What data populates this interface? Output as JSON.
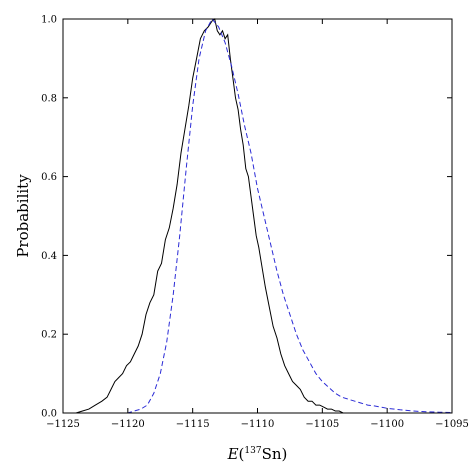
{
  "chart_data": {
    "type": "line",
    "title": "",
    "xlabel": {
      "italic": "E",
      "open": "(",
      "sup": "137",
      "rest": "Sn)"
    },
    "ylabel": "Probability",
    "xlim": [
      -1125,
      -1095
    ],
    "ylim": [
      0.0,
      1.0
    ],
    "x_ticks": [
      -1125,
      -1120,
      -1115,
      -1110,
      -1105,
      -1100,
      -1095
    ],
    "x_tick_labels": [
      "−1125",
      "−1120",
      "−1115",
      "−1110",
      "−1105",
      "−1100",
      "−1095"
    ],
    "y_ticks": [
      0.0,
      0.2,
      0.4,
      0.6,
      0.8,
      1.0
    ],
    "y_tick_labels": [
      "0.0",
      "0.2",
      "0.4",
      "0.6",
      "0.8",
      "1.0"
    ],
    "grid": false,
    "legend": "none",
    "series": [
      {
        "style": "solid",
        "color": "#000000",
        "x": [
          -1125,
          -1124,
          -1123.5,
          -1123,
          -1122.5,
          -1122,
          -1121.6,
          -1121.3,
          -1121,
          -1120.7,
          -1120.4,
          -1120.1,
          -1119.8,
          -1119.5,
          -1119.2,
          -1118.9,
          -1118.6,
          -1118.3,
          -1118.0,
          -1117.7,
          -1117.4,
          -1117.1,
          -1116.8,
          -1116.5,
          -1116.2,
          -1115.9,
          -1115.6,
          -1115.3,
          -1115.0,
          -1114.7,
          -1114.4,
          -1114.1,
          -1113.8,
          -1113.5,
          -1113.3,
          -1113.1,
          -1112.9,
          -1112.7,
          -1112.5,
          -1112.3,
          -1112.1,
          -1111.9,
          -1111.7,
          -1111.5,
          -1111.3,
          -1111.1,
          -1110.9,
          -1110.7,
          -1110.5,
          -1110.3,
          -1110.1,
          -1109.9,
          -1109.7,
          -1109.4,
          -1109.1,
          -1108.8,
          -1108.5,
          -1108.2,
          -1107.9,
          -1107.6,
          -1107.3,
          -1107.0,
          -1106.7,
          -1106.4,
          -1106.1,
          -1105.8,
          -1105.5,
          -1105.2,
          -1104.9,
          -1104.6,
          -1104.3,
          -1104.0,
          -1103.7,
          -1103.4,
          -1103.1,
          -1102.8,
          -1102.5,
          -1102.2,
          -1101.9
        ],
        "y": [
          0.0,
          0.0,
          0.005,
          0.01,
          0.02,
          0.03,
          0.04,
          0.06,
          0.08,
          0.09,
          0.1,
          0.12,
          0.13,
          0.15,
          0.17,
          0.2,
          0.25,
          0.28,
          0.3,
          0.36,
          0.38,
          0.44,
          0.47,
          0.52,
          0.58,
          0.66,
          0.72,
          0.78,
          0.85,
          0.9,
          0.95,
          0.97,
          0.98,
          0.995,
          1.0,
          0.97,
          0.96,
          0.97,
          0.95,
          0.96,
          0.9,
          0.85,
          0.8,
          0.77,
          0.72,
          0.68,
          0.62,
          0.6,
          0.55,
          0.5,
          0.45,
          0.42,
          0.38,
          0.32,
          0.27,
          0.22,
          0.19,
          0.15,
          0.12,
          0.1,
          0.08,
          0.07,
          0.06,
          0.04,
          0.03,
          0.03,
          0.02,
          0.02,
          0.015,
          0.01,
          0.01,
          0.005,
          0.005,
          0.0,
          0.0,
          0.0,
          0.0,
          0.0,
          0.0
        ]
      },
      {
        "style": "dashed",
        "color": "#2b2bd6",
        "x": [
          -1125,
          -1120,
          -1119.5,
          -1119,
          -1118.5,
          -1118,
          -1117.5,
          -1117,
          -1116.5,
          -1116,
          -1115.5,
          -1115,
          -1114.5,
          -1114,
          -1113.5,
          -1113,
          -1112.5,
          -1112,
          -1111.5,
          -1111,
          -1110.5,
          -1110,
          -1109.5,
          -1109,
          -1108.5,
          -1108,
          -1107.5,
          -1107,
          -1106.5,
          -1106,
          -1105.5,
          -1105,
          -1104.5,
          -1104,
          -1103.5,
          -1103,
          -1102.5,
          -1102,
          -1101.5,
          -1101,
          -1100.5,
          -1100,
          -1099,
          -1098,
          -1097,
          -1096,
          -1095
        ],
        "y": [
          0.0,
          0.0,
          0.005,
          0.01,
          0.02,
          0.05,
          0.1,
          0.18,
          0.3,
          0.45,
          0.62,
          0.78,
          0.9,
          0.97,
          1.0,
          0.98,
          0.94,
          0.88,
          0.81,
          0.73,
          0.66,
          0.57,
          0.5,
          0.43,
          0.36,
          0.3,
          0.25,
          0.2,
          0.16,
          0.13,
          0.1,
          0.08,
          0.065,
          0.05,
          0.04,
          0.035,
          0.03,
          0.025,
          0.02,
          0.018,
          0.015,
          0.012,
          0.008,
          0.005,
          0.003,
          0.002,
          0.001
        ]
      }
    ]
  }
}
